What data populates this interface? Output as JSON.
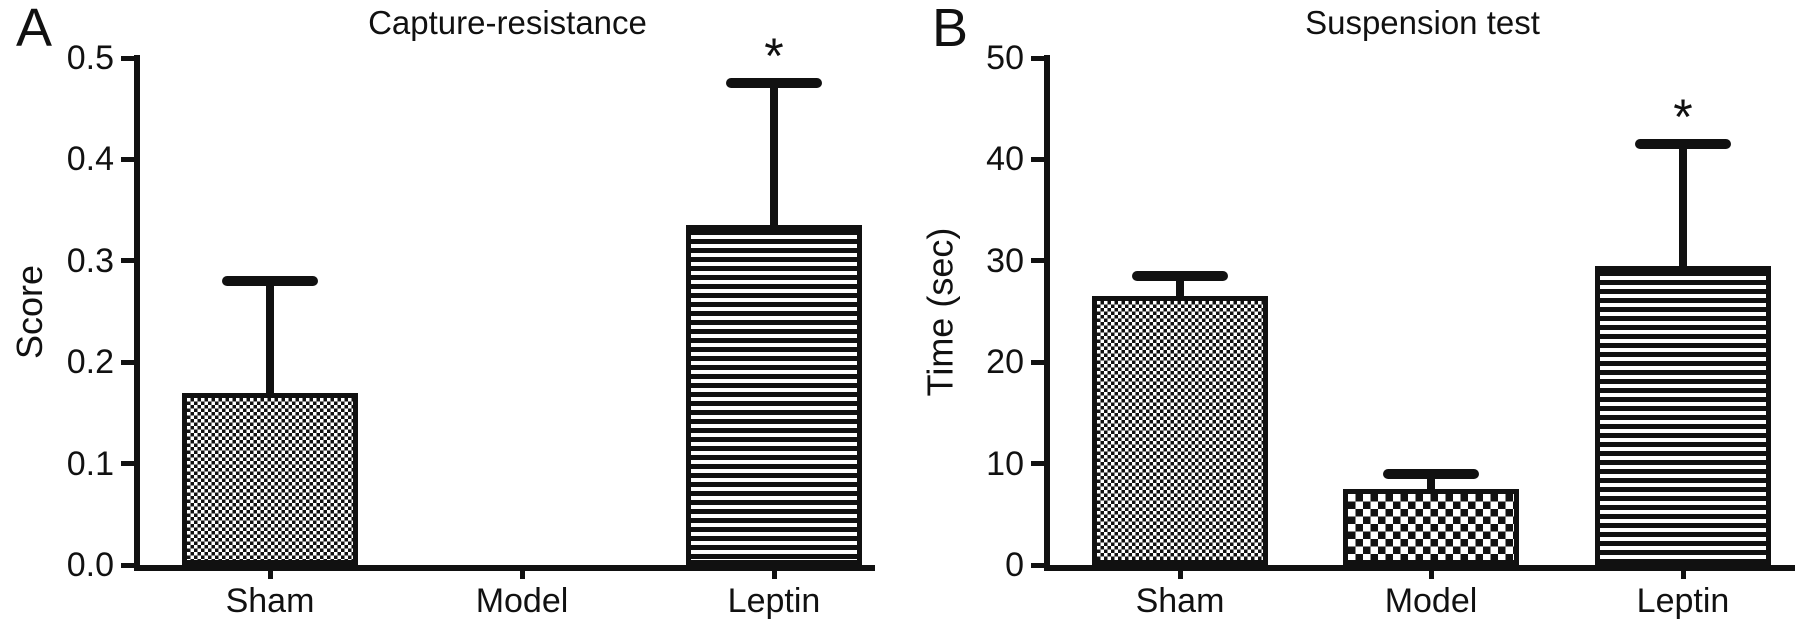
{
  "figure": {
    "background_color": "#ffffff",
    "ink_color": "#111111"
  },
  "chart_data": [
    {
      "panel": "A",
      "type": "bar",
      "title": "Capture-resistance",
      "ylabel": "Score",
      "xlabel": "",
      "categories": [
        "Sham",
        "Model",
        "Leptin"
      ],
      "values": [
        0.17,
        0,
        0.335
      ],
      "error_tops": [
        0.28,
        null,
        0.475
      ],
      "significance": [
        "",
        "",
        "*"
      ],
      "patterns": [
        "fine-check",
        "none",
        "h-stripes"
      ],
      "ylim": [
        0,
        0.5
      ],
      "yticks": [
        "0.0",
        "0.1",
        "0.2",
        "0.3",
        "0.4",
        "0.5"
      ],
      "grid": false,
      "legend": "none"
    },
    {
      "panel": "B",
      "type": "bar",
      "title": "Suspension test",
      "ylabel": "Time (sec)",
      "xlabel": "",
      "categories": [
        "Sham",
        "Model",
        "Leptin"
      ],
      "values": [
        26.5,
        7.5,
        29.5
      ],
      "error_tops": [
        28.5,
        9,
        41.5
      ],
      "significance": [
        "",
        "",
        "*"
      ],
      "patterns": [
        "fine-check",
        "coarse-check",
        "h-stripes"
      ],
      "ylim": [
        0,
        50
      ],
      "yticks": [
        "0",
        "10",
        "20",
        "30",
        "40",
        "50"
      ],
      "grid": false,
      "legend": "none"
    }
  ]
}
